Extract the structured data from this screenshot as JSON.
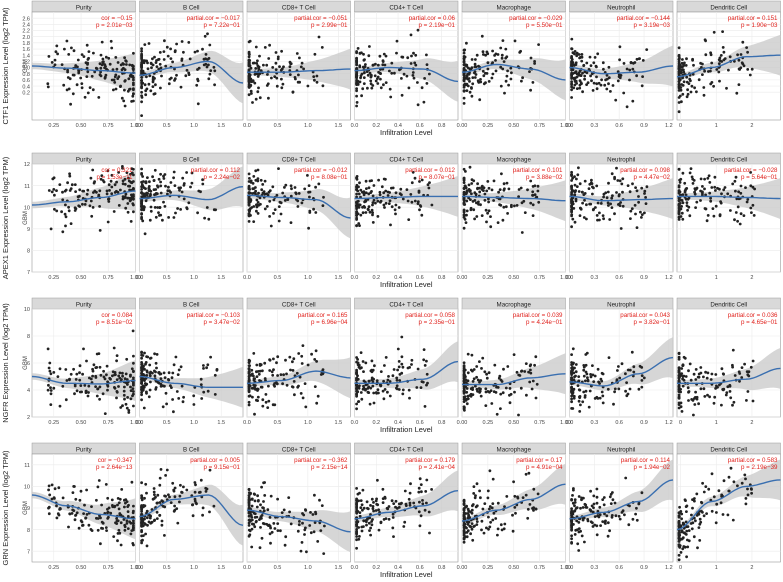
{
  "figure": {
    "x_axis_title": "Infiltration Level",
    "row_label": "GBM",
    "colors": {
      "point": "#222222",
      "fit_line": "#3a6fb0",
      "ci_band": "#c8c8c8",
      "stats_text": "#e0201b",
      "strip_bg": "#d9d9d9",
      "grid": "#ebebeb"
    }
  },
  "chart_data": [
    {
      "type": "scatter",
      "gene": "CTF1",
      "ylabel": "CTF1 Expression Level (log2 TPM)",
      "ylim": [
        -0.7,
        2.8
      ],
      "y_ticks": [
        "0.2",
        "0.4",
        "0.6",
        "0.8",
        "1.0",
        "1.2",
        "1.4",
        "1.6",
        "1.8",
        "2.0",
        "2.2",
        "2.4",
        "2.6"
      ],
      "y_tick_values": [
        0.2,
        0.4,
        0.6,
        0.8,
        1.0,
        1.2,
        1.4,
        1.6,
        1.8,
        2.0,
        2.2,
        2.4,
        2.6
      ],
      "xlabel": "Infiltration Level",
      "panels": [
        {
          "name": "Purity",
          "stat1": "cor = −0.15",
          "stat2": "p = 2.01e−03",
          "xlim": [
            0.05,
            1.0
          ],
          "x_ticks": [
            "0.25",
            "0.50",
            "0.75",
            "1.00"
          ],
          "x_tick_values": [
            0.25,
            0.5,
            0.75,
            1.0
          ],
          "fit": [
            1.05,
            0.98,
            0.9,
            0.82
          ]
        },
        {
          "name": "B Cell",
          "stat1": "partial.cor = −0.017",
          "stat2": "p = 7.22e−01",
          "xlim": [
            0.0,
            1.9
          ],
          "x_ticks": [
            "0.0",
            "0.5",
            "1.0",
            "1.5"
          ],
          "x_tick_values": [
            0.0,
            0.5,
            1.0,
            1.5
          ],
          "fit": [
            0.75,
            1.0,
            1.2,
            0.5
          ]
        },
        {
          "name": "CD8+ T Cell",
          "stat1": "partial.cor = −0.051",
          "stat2": "p = 2.99e−01",
          "xlim": [
            0.0,
            1.7
          ],
          "x_ticks": [
            "0.0",
            "0.5",
            "1.0",
            "1.5"
          ],
          "x_tick_values": [
            0.0,
            0.5,
            1.0,
            1.5
          ],
          "fit": [
            0.85,
            0.85,
            0.9,
            0.95
          ]
        },
        {
          "name": "CD4+ T Cell",
          "stat1": "partial.cor = 0.06",
          "stat2": "p = 2.19e−01",
          "xlim": [
            0.0,
            0.95
          ],
          "x_ticks": [
            "0.0",
            "0.2",
            "0.4",
            "0.6",
            "0.8"
          ],
          "x_tick_values": [
            0.0,
            0.2,
            0.4,
            0.6,
            0.8
          ],
          "fit": [
            0.9,
            1.0,
            0.95,
            0.55
          ]
        },
        {
          "name": "Macrophage",
          "stat1": "partial.cor = −0.029",
          "stat2": "p = 5.50e−01",
          "xlim": [
            0.0,
            1.0
          ],
          "x_ticks": [
            "0.00",
            "0.25",
            "0.50",
            "0.75",
            "1.00"
          ],
          "x_tick_values": [
            0.0,
            0.25,
            0.5,
            0.75,
            1.0
          ],
          "fit": [
            0.85,
            1.1,
            0.95,
            0.6
          ]
        },
        {
          "name": "Neutrophil",
          "stat1": "partial.cor = −0.144",
          "stat2": "p = 3.19e−03",
          "xlim": [
            0.0,
            1.25
          ],
          "x_ticks": [
            "0.0",
            "0.3",
            "0.6",
            "0.9",
            "1.2"
          ],
          "x_tick_values": [
            0.0,
            0.3,
            0.6,
            0.9,
            1.2
          ],
          "fit": [
            1.0,
            0.8,
            0.85,
            1.05
          ]
        },
        {
          "name": "Dendritic Cell",
          "stat1": "partial.cor = 0.151",
          "stat2": "p = 1.90e−03",
          "xlim": [
            -0.1,
            2.8
          ],
          "x_ticks": [
            "0",
            "1",
            "2"
          ],
          "x_tick_values": [
            0,
            1,
            2
          ],
          "fit": [
            0.7,
            1.0,
            1.35,
            1.4
          ]
        }
      ]
    },
    {
      "type": "scatter",
      "gene": "APEX1",
      "ylabel": "APEX1 Expression Level (log2 TPM)",
      "ylim": [
        7.0,
        12.0
      ],
      "y_ticks": [
        "7",
        "8",
        "9",
        "10",
        "11",
        "12"
      ],
      "y_tick_values": [
        7,
        8,
        9,
        10,
        11,
        12
      ],
      "xlabel": "Infiltration Level",
      "panels": [
        {
          "name": "Purity",
          "stat1": "cor = 0.321",
          "stat2": "p = 1.53e−11",
          "xlim": [
            0.05,
            1.0
          ],
          "x_ticks": [
            "0.25",
            "0.50",
            "0.75",
            "1.00"
          ],
          "x_tick_values": [
            0.25,
            0.5,
            0.75,
            1.0
          ],
          "fit": [
            10.1,
            10.25,
            10.45,
            10.75
          ]
        },
        {
          "name": "B Cell",
          "stat1": "partial.cor = 0.112",
          "stat2": "p = 2.24e−02",
          "xlim": [
            0.0,
            1.9
          ],
          "x_ticks": [
            "0.0",
            "0.5",
            "1.0",
            "1.5"
          ],
          "x_tick_values": [
            0.0,
            0.5,
            1.0,
            1.5
          ],
          "fit": [
            10.4,
            10.55,
            10.35,
            10.95
          ]
        },
        {
          "name": "CD8+ T Cell",
          "stat1": "partial.cor = −0.012",
          "stat2": "p = 8.08e−01",
          "xlim": [
            0.0,
            1.7
          ],
          "x_ticks": [
            "0.0",
            "0.5",
            "1.0",
            "1.5"
          ],
          "x_tick_values": [
            0.0,
            0.5,
            1.0,
            1.5
          ],
          "fit": [
            10.55,
            10.45,
            10.35,
            9.5
          ]
        },
        {
          "name": "CD4+ T Cell",
          "stat1": "partial.cor = 0.012",
          "stat2": "p = 8.07e−01",
          "xlim": [
            0.0,
            0.95
          ],
          "x_ticks": [
            "0.0",
            "0.2",
            "0.4",
            "0.6",
            "0.8"
          ],
          "x_tick_values": [
            0.0,
            0.2,
            0.4,
            0.6,
            0.8
          ],
          "fit": [
            10.4,
            10.45,
            10.5,
            10.5
          ]
        },
        {
          "name": "Macrophage",
          "stat1": "partial.cor = 0.101",
          "stat2": "p = 3.88e−02",
          "xlim": [
            0.0,
            1.0
          ],
          "x_ticks": [
            "0.00",
            "0.25",
            "0.50",
            "0.75",
            "1.00"
          ],
          "x_tick_values": [
            0.0,
            0.25,
            0.5,
            0.75,
            1.0
          ],
          "fit": [
            10.5,
            10.45,
            10.4,
            10.3
          ]
        },
        {
          "name": "Neutrophil",
          "stat1": "partial.cor = 0.098",
          "stat2": "p = 4.47e−02",
          "xlim": [
            0.0,
            1.25
          ],
          "x_ticks": [
            "0.0",
            "0.3",
            "0.6",
            "0.9",
            "1.2"
          ],
          "x_tick_values": [
            0.0,
            0.3,
            0.6,
            0.9,
            1.2
          ],
          "fit": [
            10.5,
            10.3,
            10.35,
            10.4
          ]
        },
        {
          "name": "Dendritic Cell",
          "stat1": "partial.cor = −0.028",
          "stat2": "p = 5.64e−01",
          "xlim": [
            -0.1,
            2.8
          ],
          "x_ticks": [
            "0",
            "1",
            "2"
          ],
          "x_tick_values": [
            0,
            1,
            2
          ],
          "fit": [
            10.5,
            10.5,
            10.45,
            10.4
          ]
        }
      ]
    },
    {
      "type": "scatter",
      "gene": "NGFR",
      "ylabel": "NGFR Expression Level (log2 TPM)",
      "ylim": [
        2.0,
        10.0
      ],
      "y_ticks": [
        "2",
        "4",
        "6",
        "8",
        "10"
      ],
      "y_tick_values": [
        2,
        4,
        6,
        8,
        10
      ],
      "xlabel": "Infiltration Level",
      "panels": [
        {
          "name": "Purity",
          "stat1": "cor = 0.084",
          "stat2": "p = 8.51e−02",
          "xlim": [
            0.05,
            1.0
          ],
          "x_ticks": [
            "0.25",
            "0.50",
            "0.75",
            "1.00"
          ],
          "x_tick_values": [
            0.25,
            0.5,
            0.75,
            1.0
          ],
          "fit": [
            5.0,
            4.5,
            4.45,
            4.7
          ]
        },
        {
          "name": "B Cell",
          "stat1": "partial.cor = −0.103",
          "stat2": "p = 3.47e−02",
          "xlim": [
            0.0,
            1.9
          ],
          "x_ticks": [
            "0.0",
            "0.5",
            "1.0",
            "1.5"
          ],
          "x_tick_values": [
            0.0,
            0.5,
            1.0,
            1.5
          ],
          "fit": [
            5.0,
            4.5,
            4.2,
            4.2
          ]
        },
        {
          "name": "CD8+ T Cell",
          "stat1": "partial.cor = 0.165",
          "stat2": "p = 6.96e−04",
          "xlim": [
            0.0,
            1.7
          ],
          "x_ticks": [
            "0.0",
            "0.5",
            "1.0",
            "1.5"
          ],
          "x_tick_values": [
            0.0,
            0.5,
            1.0,
            1.5
          ],
          "fit": [
            4.5,
            4.7,
            5.4,
            4.9
          ]
        },
        {
          "name": "CD4+ T Cell",
          "stat1": "partial.cor = 0.058",
          "stat2": "p = 2.35e−01",
          "xlim": [
            0.0,
            0.95
          ],
          "x_ticks": [
            "0.0",
            "0.2",
            "0.4",
            "0.6",
            "0.8"
          ],
          "x_tick_values": [
            0.0,
            0.2,
            0.4,
            0.6,
            0.8
          ],
          "fit": [
            4.5,
            4.5,
            4.8,
            6.1
          ]
        },
        {
          "name": "Macrophage",
          "stat1": "partial.cor = 0.039",
          "stat2": "p = 4.24e−01",
          "xlim": [
            0.0,
            1.0
          ],
          "x_ticks": [
            "0.00",
            "0.25",
            "0.50",
            "0.75",
            "1.00"
          ],
          "x_tick_values": [
            0.0,
            0.25,
            0.5,
            0.75,
            1.0
          ],
          "fit": [
            4.4,
            4.4,
            4.9,
            5.2
          ]
        },
        {
          "name": "Neutrophil",
          "stat1": "partial.cor = 0.043",
          "stat2": "p = 3.82e−01",
          "xlim": [
            0.0,
            1.25
          ],
          "x_ticks": [
            "0.0",
            "0.3",
            "0.6",
            "0.9",
            "1.2"
          ],
          "x_tick_values": [
            0.0,
            0.3,
            0.6,
            0.9,
            1.2
          ],
          "fit": [
            4.6,
            4.3,
            5.2,
            6.4
          ]
        },
        {
          "name": "Dendritic Cell",
          "stat1": "partial.cor = 0.036",
          "stat2": "p = 4.65e−01",
          "xlim": [
            -0.1,
            2.8
          ],
          "x_ticks": [
            "0",
            "1",
            "2"
          ],
          "x_tick_values": [
            0,
            1,
            2
          ],
          "fit": [
            4.5,
            4.5,
            4.8,
            5.6
          ]
        }
      ]
    },
    {
      "type": "scatter",
      "gene": "GRN",
      "ylabel": "GRN Expression Level (log2 TPM)",
      "ylim": [
        6.5,
        11.5
      ],
      "y_ticks": [
        "7",
        "8",
        "9",
        "10",
        "11"
      ],
      "y_tick_values": [
        7,
        8,
        9,
        10,
        11
      ],
      "xlabel": "Infiltration Level",
      "panels": [
        {
          "name": "Purity",
          "stat1": "cor = −0.347",
          "stat2": "p = 2.64e−13",
          "xlim": [
            0.05,
            1.0
          ],
          "x_ticks": [
            "0.25",
            "0.50",
            "0.75",
            "1.00"
          ],
          "x_tick_values": [
            0.25,
            0.5,
            0.75,
            1.0
          ],
          "fit": [
            9.6,
            9.1,
            8.7,
            8.5
          ]
        },
        {
          "name": "B Cell",
          "stat1": "partial.cor = 0.005",
          "stat2": "p = 9.15e−01",
          "xlim": [
            0.0,
            1.9
          ],
          "x_ticks": [
            "0.0",
            "0.5",
            "1.0",
            "1.5"
          ],
          "x_tick_values": [
            0.0,
            0.5,
            1.0,
            1.5
          ],
          "fit": [
            8.6,
            9.4,
            9.6,
            8.2
          ]
        },
        {
          "name": "CD8+ T Cell",
          "stat1": "partial.cor = −0.362",
          "stat2": "p = 2.15e−14",
          "xlim": [
            0.0,
            1.7
          ],
          "x_ticks": [
            "0.0",
            "0.5",
            "1.0",
            "1.5"
          ],
          "x_tick_values": [
            0.0,
            0.5,
            1.0,
            1.5
          ],
          "fit": [
            8.9,
            8.6,
            8.4,
            7.9
          ]
        },
        {
          "name": "CD4+ T Cell",
          "stat1": "partial.cor = 0.179",
          "stat2": "p = 2.41e−04",
          "xlim": [
            0.0,
            0.95
          ],
          "x_ticks": [
            "0.0",
            "0.2",
            "0.4",
            "0.6",
            "0.8"
          ],
          "x_tick_values": [
            0.0,
            0.2,
            0.4,
            0.6,
            0.8
          ],
          "fit": [
            8.5,
            8.8,
            9.1,
            9.8
          ]
        },
        {
          "name": "Macrophage",
          "stat1": "partial.cor = 0.17",
          "stat2": "p = 4.91e−04",
          "xlim": [
            0.0,
            1.0
          ],
          "x_ticks": [
            "0.00",
            "0.25",
            "0.50",
            "0.75",
            "1.00"
          ],
          "x_tick_values": [
            0.0,
            0.25,
            0.5,
            0.75,
            1.0
          ],
          "fit": [
            8.4,
            8.9,
            9.4,
            10.1
          ]
        },
        {
          "name": "Neutrophil",
          "stat1": "partial.cor = 0.114",
          "stat2": "p = 1.94e−02",
          "xlim": [
            0.0,
            1.25
          ],
          "x_ticks": [
            "0.0",
            "0.3",
            "0.6",
            "0.9",
            "1.2"
          ],
          "x_tick_values": [
            0.0,
            0.3,
            0.6,
            0.9,
            1.2
          ],
          "fit": [
            8.5,
            8.8,
            9.3,
            10.3
          ]
        },
        {
          "name": "Dendritic Cell",
          "stat1": "partial.cor = 0.583",
          "stat2": "p = 2.19e−39",
          "xlim": [
            -0.1,
            2.8
          ],
          "x_ticks": [
            "0",
            "1",
            "2"
          ],
          "x_tick_values": [
            0,
            1,
            2
          ],
          "fit": [
            8.0,
            9.3,
            10.0,
            10.3
          ]
        }
      ]
    }
  ]
}
